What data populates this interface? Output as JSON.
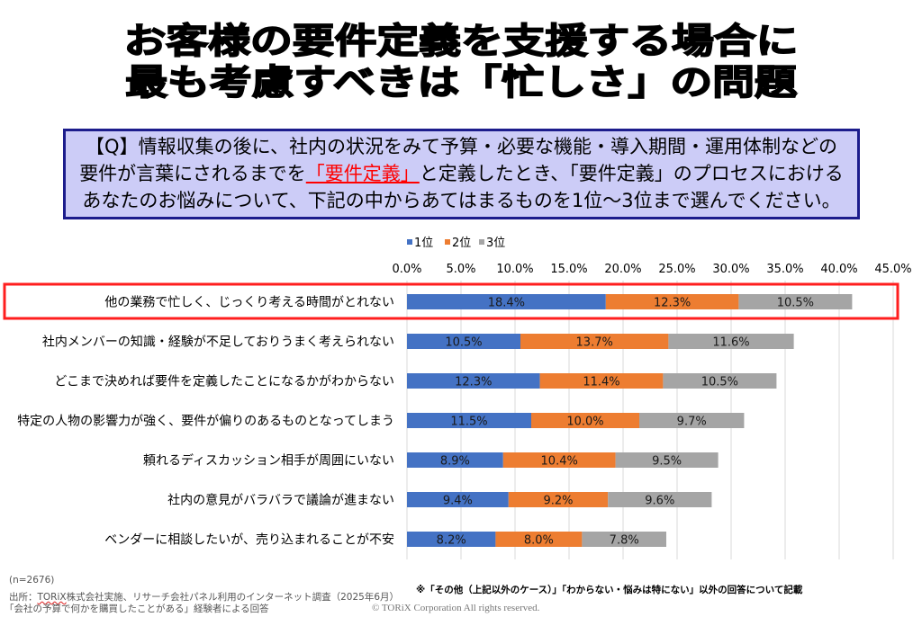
{
  "header": {
    "title_lines": [
      "お客様の要件定義を支援する場合に",
      "最も考慮すべきは「忙しさ」の問題"
    ]
  },
  "question": {
    "line1": "【Q】情報収集の後に、社内の状況をみて予算・必要な機能・導入期間・運用体制などの",
    "line2_before": "要件が言葉にされるまでを",
    "line2_highlight": "「要件定義」",
    "line2_after": "と定義したとき、「要件定義」のプロセスにおける",
    "line3": "あなたのお悩みについて、下記の中からあてはまるものを1位～3位まで選んでください。",
    "highlight_color": "#FF0000"
  },
  "chart_data": {
    "type": "bar",
    "orientation": "horizontal",
    "stacked": true,
    "title": "",
    "xlabel": "",
    "ylabel": "",
    "categories": [
      "他の業務で忙しく、じっくり考える時間がとれない",
      "社内メンバーの知識・経験が不足しておりうまく考えられない",
      "どこまで決めれば要件を定義したことになるかがわからない",
      "特定の人物の影響力が強く、要件が偏りのあるものとなってしまう",
      "頼れるディスカッション相手が周囲にいない",
      "社内の意見がバラバラで議論が進まない",
      "ベンダーに相談したいが、売り込まれることが不安"
    ],
    "series": [
      {
        "name": "1位",
        "color": "#4472C4",
        "values": [
          18.4,
          10.5,
          12.3,
          11.5,
          8.9,
          9.4,
          8.2
        ]
      },
      {
        "name": "2位",
        "color": "#ED7D31",
        "values": [
          12.3,
          13.7,
          11.4,
          10.0,
          10.4,
          9.2,
          8.0
        ]
      },
      {
        "name": "3位",
        "color": "#A5A5A5",
        "values": [
          10.5,
          11.6,
          10.5,
          9.7,
          9.5,
          9.6,
          7.8
        ]
      }
    ],
    "xlim": [
      0,
      45
    ],
    "xticks": [
      0,
      5,
      10,
      15,
      20,
      25,
      30,
      35,
      40,
      45
    ],
    "xtick_labels": [
      "0.0%",
      "5.0%",
      "10.0%",
      "15.0%",
      "20.0%",
      "25.0%",
      "30.0%",
      "35.0%",
      "40.0%",
      "45.0%"
    ],
    "data_label_format": "0.0%",
    "grid": true,
    "legend": "top-left",
    "highlighted_category_index": 0,
    "highlight_color": "#FF1E1E"
  },
  "footer": {
    "sample_size": "(n=2676)",
    "source_prefix": "出所：",
    "source_company": "TORiX",
    "source_rest": "株式会社実施、リサーチ会社パネル利用のインターネット調査（2025年6月）",
    "respondents": "「会社の予算で何かを購買したことがある」経験者による回答",
    "note": "※「その他（上記以外のケース）」「わからない・悩みは特にない」以外の回答について記載",
    "copyright": "© TORiX Corporation All rights reserved."
  }
}
